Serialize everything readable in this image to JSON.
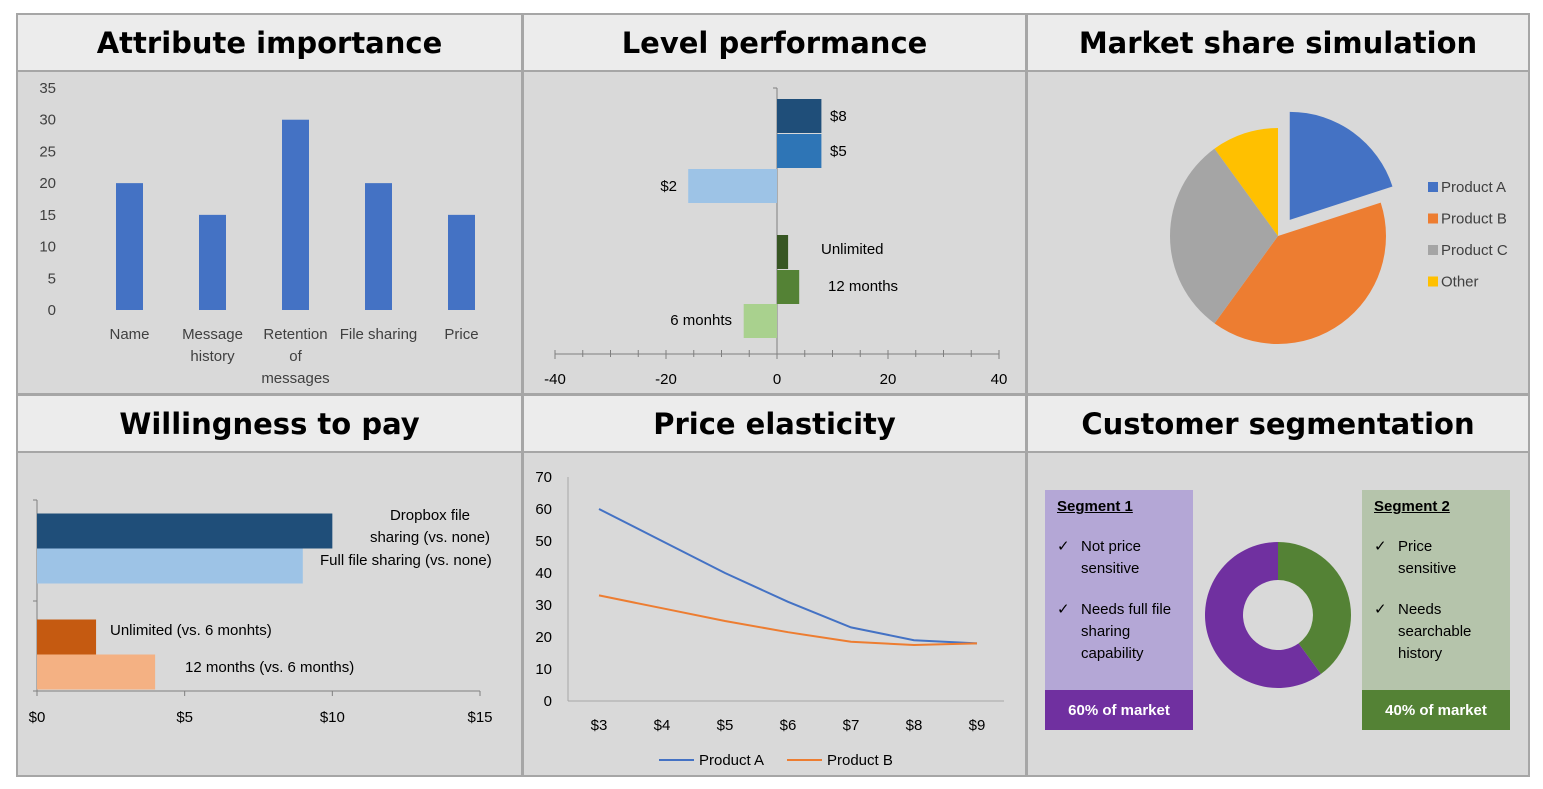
{
  "panels": {
    "attr": "Attribute importance",
    "level": "Level performance",
    "share": "Market share simulation",
    "wtp": "Willingness to pay",
    "elast": "Price elasticity",
    "seg": "Customer segmentation"
  },
  "colors": {
    "blue": "#4472c4",
    "orange": "#ed7d31",
    "gray": "#a5a5a5",
    "yellow": "#ffc000",
    "purple": "#7030a0",
    "green": "#548235"
  },
  "chart_data": [
    {
      "id": "attribute-importance",
      "type": "bar",
      "title": "Attribute importance",
      "categories": [
        [
          "Name"
        ],
        [
          "Message",
          "history"
        ],
        [
          "Retention",
          "of",
          "messages"
        ],
        [
          "File sharing"
        ],
        [
          "Price"
        ]
      ],
      "values": [
        20,
        15,
        30,
        20,
        15
      ],
      "ylim": [
        0,
        35
      ],
      "yticks": [
        0,
        5,
        10,
        15,
        20,
        25,
        30,
        35
      ],
      "color": "#4472c4"
    },
    {
      "id": "level-performance",
      "type": "bar",
      "orientation": "horizontal",
      "title": "Level performance",
      "bars": [
        {
          "label": "$8",
          "value": 8,
          "color": "#1f4e79"
        },
        {
          "label": "$5",
          "value": 8,
          "color": "#2e75b6"
        },
        {
          "label": "$2",
          "value": -16,
          "color": "#9dc3e6"
        },
        {
          "label": "Unlimited",
          "value": 2,
          "color": "#375623"
        },
        {
          "label": "12 months",
          "value": 4,
          "color": "#548235"
        },
        {
          "label": "6 monhts",
          "value": -6,
          "color": "#a9d18e"
        }
      ],
      "xlim": [
        -40,
        40
      ],
      "xticks": [
        -40,
        -20,
        0,
        20,
        40
      ]
    },
    {
      "id": "market-share",
      "type": "pie",
      "title": "Market share simulation",
      "slices": [
        {
          "label": "Product A",
          "value": 20,
          "color": "#4472c4",
          "exploded": true
        },
        {
          "label": "Product B",
          "value": 40,
          "color": "#ed7d31"
        },
        {
          "label": "Product C",
          "value": 30,
          "color": "#a5a5a5"
        },
        {
          "label": "Other",
          "value": 10,
          "color": "#ffc000"
        }
      ]
    },
    {
      "id": "willingness-to-pay",
      "type": "bar",
      "orientation": "horizontal",
      "title": "Willingness to pay",
      "bars": [
        {
          "label": [
            "Dropbox file",
            "sharing (vs. none)"
          ],
          "value": 10,
          "color": "#1f4e79"
        },
        {
          "label": [
            "Full file sharing (vs. none)"
          ],
          "value": 9,
          "color": "#9dc3e6"
        },
        {
          "label": [
            "Unlimited (vs. 6 monhts)"
          ],
          "value": 2,
          "color": "#c55a11"
        },
        {
          "label": [
            "12 months (vs. 6 months)"
          ],
          "value": 4,
          "color": "#f4b183"
        }
      ],
      "xlim": [
        0,
        15
      ],
      "xticks": [
        "$0",
        "$5",
        "$10",
        "$15"
      ]
    },
    {
      "id": "price-elasticity",
      "type": "line",
      "title": "Price elasticity",
      "categories": [
        "$3",
        "$4",
        "$5",
        "$6",
        "$7",
        "$8",
        "$9"
      ],
      "series": [
        {
          "name": "Product A",
          "values": [
            60,
            50,
            40,
            31,
            23,
            19,
            18
          ],
          "color": "#4472c4"
        },
        {
          "name": "Product B",
          "values": [
            33,
            29,
            25,
            21.5,
            18.5,
            17.5,
            18
          ],
          "color": "#ed7d31"
        }
      ],
      "ylim": [
        0,
        70
      ],
      "yticks": [
        0,
        10,
        20,
        30,
        40,
        50,
        60,
        70
      ]
    },
    {
      "id": "customer-segmentation",
      "type": "pie",
      "donut": true,
      "title": "Customer segmentation",
      "slices": [
        {
          "label": "Segment 1",
          "value": 60,
          "color": "#7030a0"
        },
        {
          "label": "Segment 2",
          "value": 40,
          "color": "#548235"
        }
      ]
    }
  ],
  "segments": {
    "s1": {
      "title": "Segment 1",
      "points": [
        "Not price sensitive",
        "Needs full file sharing capability"
      ],
      "footer": "60% of market"
    },
    "s2": {
      "title": "Segment 2",
      "points": [
        "Price sensitive",
        "Needs searchable history"
      ],
      "footer": "40% of market"
    }
  },
  "check_glyph": "✓"
}
